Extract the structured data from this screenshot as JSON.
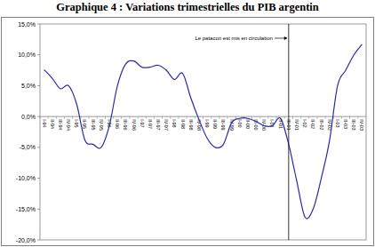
{
  "chart_data": {
    "type": "line",
    "title": "Graphique 4 : Variations trimestrielles du PIB argentin",
    "categories": [
      "I-94",
      "II-94",
      "III-94",
      "IV-94",
      "I-95",
      "II-95",
      "III-95",
      "IV-95",
      "I-96",
      "II-96",
      "III-96",
      "IV-96",
      "I-97",
      "II-97",
      "III-97",
      "IV-97",
      "I-98",
      "II-98",
      "III-98",
      "IV-98",
      "I-99",
      "II-99",
      "III-99",
      "IV-99",
      "I-00",
      "II-00",
      "III-00",
      "IV-00",
      "I-01",
      "II-01",
      "III-01",
      "IV-01",
      "I-02",
      "II-02",
      "III-02",
      "IV-02",
      "I-03",
      "II-03",
      "III-03",
      "IV-03"
    ],
    "values": [
      7.6,
      6.2,
      4.5,
      5.0,
      2.0,
      -3.8,
      -4.5,
      -5.0,
      -1.5,
      5.0,
      8.5,
      9.0,
      8.0,
      8.0,
      8.3,
      7.5,
      6.0,
      7.0,
      3.0,
      -0.5,
      -3.5,
      -5.0,
      -4.5,
      -1.0,
      -0.3,
      -0.3,
      -0.8,
      -1.5,
      -1.5,
      -0.3,
      -4.5,
      -10.5,
      -16.3,
      -15.0,
      -10.0,
      -4.0,
      5.0,
      7.5,
      10.0,
      11.7
    ],
    "color": "#2a2aa8",
    "line_style": "smooth",
    "ylim": [
      -20,
      15
    ],
    "yticks": [
      {
        "value": -20,
        "label": "-20,0%"
      },
      {
        "value": -15,
        "label": "-15,0%"
      },
      {
        "value": -10,
        "label": "-10,0%"
      },
      {
        "value": -5,
        "label": "-5,0%"
      },
      {
        "value": 0,
        "label": "0,0%"
      },
      {
        "value": 5,
        "label": "5,0%"
      },
      {
        "value": 10,
        "label": "10,0%"
      },
      {
        "value": 15,
        "label": "15,0%"
      }
    ],
    "grid": false,
    "annotations": [
      {
        "text": "Le patacon est mis en circulation",
        "x": "III-01"
      }
    ]
  }
}
